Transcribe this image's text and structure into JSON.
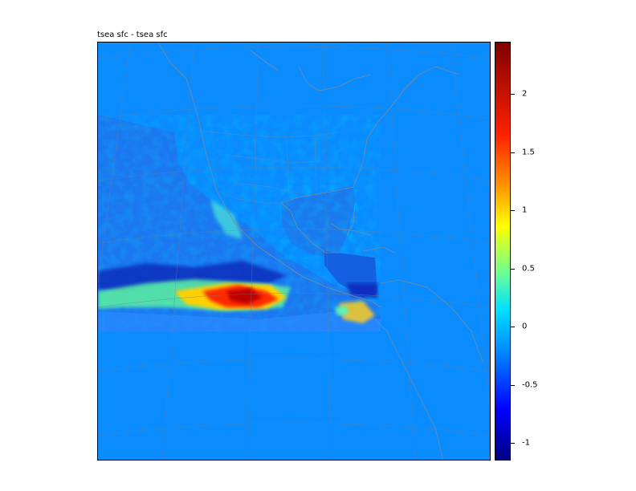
{
  "title": "tsea sfc - tsea sfc",
  "colorbar": {
    "min": -1.15,
    "max": 2.45,
    "ticks": [
      {
        "value": 2,
        "label": "2"
      },
      {
        "value": 1.5,
        "label": "1.5"
      },
      {
        "value": 1,
        "label": "1"
      },
      {
        "value": 0.5,
        "label": "0.5"
      },
      {
        "value": 0,
        "label": "0"
      },
      {
        "value": -0.5,
        "label": "-0.5"
      },
      {
        "value": -1,
        "label": "-1"
      }
    ]
  },
  "colors": {
    "background_field": "#0a8cff",
    "coastline": "#7a8a99",
    "grid": "#6f7f8f"
  }
}
